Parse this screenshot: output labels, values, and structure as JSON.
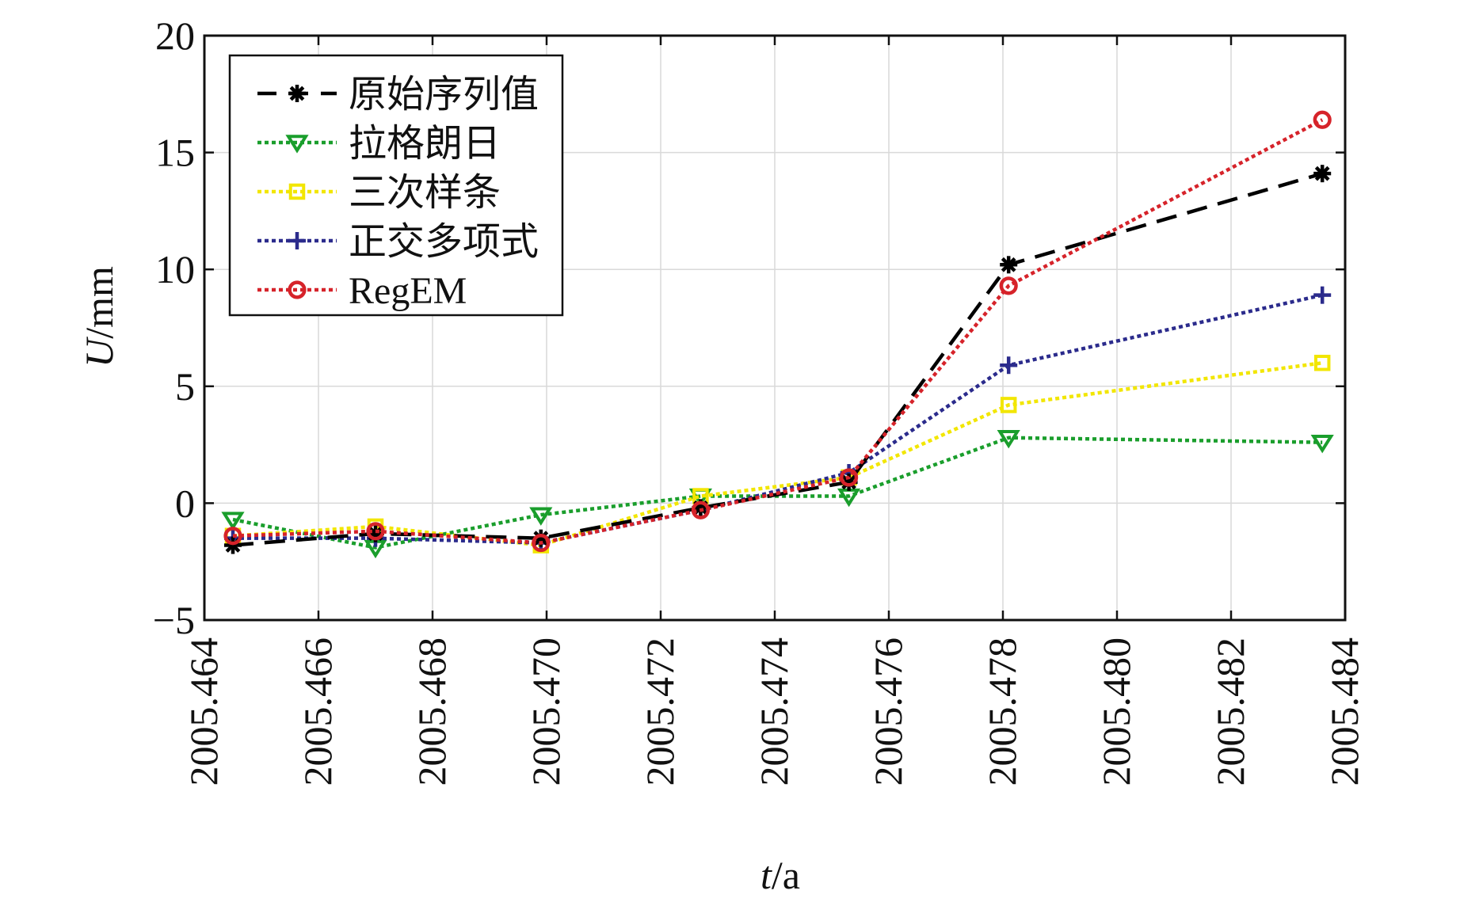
{
  "chart_data": {
    "type": "line",
    "title": "",
    "xlabel_var": "t",
    "xlabel_unit": "/a",
    "ylabel_var": "U",
    "ylabel_unit": "/mm",
    "xlim": [
      2005.464,
      2005.484
    ],
    "ylim": [
      -5,
      20
    ],
    "xticks": [
      "2005.464",
      "2005.466",
      "2005.468",
      "2005.470",
      "2005.472",
      "2005.474",
      "2005.476",
      "2005.478",
      "2005.480",
      "2005.482",
      "2005.484"
    ],
    "yticks": [
      "20",
      "15",
      "10",
      "5",
      "0",
      "−5"
    ],
    "grid": true,
    "legend_position": "top-left",
    "series": [
      {
        "name": "原始序列值",
        "color": "#000000",
        "marker": "asterisk",
        "line_style": "dashed",
        "x": [
          2005.4645,
          2005.467,
          2005.4699,
          2005.4727,
          2005.4753,
          2005.4781,
          2005.4836
        ],
        "y": [
          -1.8,
          -1.3,
          -1.5,
          -0.2,
          0.9,
          10.2,
          14.1
        ]
      },
      {
        "name": "拉格朗日",
        "color": "#1a9e2c",
        "marker": "triangle-down",
        "line_style": "dotted",
        "x": [
          2005.4645,
          2005.467,
          2005.4699,
          2005.4727,
          2005.4753,
          2005.4781,
          2005.4836
        ],
        "y": [
          -0.7,
          -1.9,
          -0.5,
          0.3,
          0.3,
          2.8,
          2.6
        ]
      },
      {
        "name": "三次样条",
        "color": "#f2e600",
        "marker": "square",
        "line_style": "dotted",
        "x": [
          2005.4645,
          2005.467,
          2005.4699,
          2005.4727,
          2005.4753,
          2005.4781,
          2005.4836
        ],
        "y": [
          -1.4,
          -1.0,
          -1.8,
          0.3,
          1.1,
          4.2,
          6.0
        ]
      },
      {
        "name": "正交多项式",
        "color": "#2b2b8c",
        "marker": "plus",
        "line_style": "dotted",
        "x": [
          2005.4645,
          2005.467,
          2005.4699,
          2005.4727,
          2005.4753,
          2005.4781,
          2005.4836
        ],
        "y": [
          -1.5,
          -1.5,
          -1.7,
          -0.3,
          1.3,
          5.9,
          8.9
        ]
      },
      {
        "name": "RegEM",
        "color": "#d6232a",
        "marker": "circle",
        "line_style": "dotted",
        "x": [
          2005.4645,
          2005.467,
          2005.4699,
          2005.4727,
          2005.4753,
          2005.4781,
          2005.4836
        ],
        "y": [
          -1.4,
          -1.2,
          -1.7,
          -0.3,
          1.1,
          9.3,
          16.4
        ]
      }
    ]
  }
}
